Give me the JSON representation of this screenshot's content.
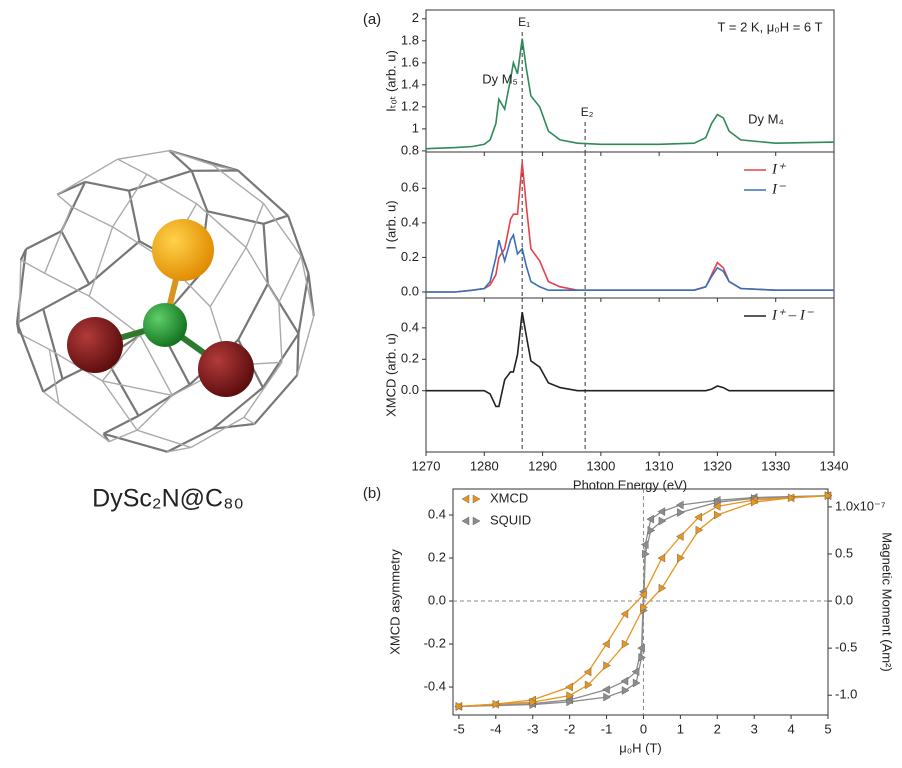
{
  "molecule": {
    "label": "DySc₂N@C₈₀"
  },
  "chart_data": [
    {
      "type": "line",
      "panel_label": "(a)",
      "ylabel": "Iₜₒₜ (arb. u)",
      "x": [
        1270,
        1275,
        1278,
        1280,
        1281,
        1282,
        1282.5,
        1283.5,
        1284.5,
        1285,
        1285.7,
        1286.5,
        1287.2,
        1288,
        1289.5,
        1291,
        1293,
        1296,
        1300,
        1310,
        1316,
        1318,
        1319,
        1320,
        1321,
        1322,
        1324,
        1330,
        1340
      ],
      "series": [
        {
          "color": "#2e8b57",
          "values": [
            0.82,
            0.83,
            0.84,
            0.86,
            0.9,
            1.05,
            1.27,
            1.18,
            1.45,
            1.6,
            1.5,
            1.82,
            1.55,
            1.3,
            1.2,
            0.98,
            0.9,
            0.87,
            0.86,
            0.86,
            0.87,
            0.92,
            1.05,
            1.13,
            1.1,
            0.98,
            0.9,
            0.87,
            0.88
          ]
        }
      ],
      "xlim": [
        1270,
        1340
      ],
      "ylim": [
        0.79,
        2.08
      ],
      "yticks": [
        0.8,
        1,
        1.2,
        1.4,
        1.6,
        1.8,
        2
      ],
      "annotations": [
        {
          "text": "T = 2 K, μ₀H = 6 T"
        },
        {
          "text": "Dy M₅"
        },
        {
          "text": "Dy M₄"
        }
      ],
      "vlines": [
        {
          "x": 1286.5,
          "label": "E₁"
        },
        {
          "x": 1297.3,
          "label": "E₂"
        }
      ]
    },
    {
      "type": "line",
      "ylabel": "I (arb. u)",
      "x": [
        1270,
        1275,
        1278,
        1280,
        1281,
        1282,
        1282.5,
        1283.5,
        1284.5,
        1285,
        1285.7,
        1286.5,
        1287.2,
        1288,
        1289.5,
        1291,
        1293,
        1296,
        1300,
        1310,
        1316,
        1318,
        1319,
        1320,
        1321,
        1322,
        1324,
        1330,
        1340
      ],
      "series": [
        {
          "name": "I⁺",
          "color": "#e8404a",
          "values": [
            0,
            0,
            0.01,
            0.02,
            0.04,
            0.1,
            0.2,
            0.25,
            0.42,
            0.45,
            0.45,
            0.75,
            0.5,
            0.25,
            0.18,
            0.06,
            0.03,
            0.01,
            0.01,
            0.01,
            0.01,
            0.03,
            0.1,
            0.17,
            0.14,
            0.06,
            0.02,
            0.01,
            0.01
          ]
        },
        {
          "name": "I⁻",
          "color": "#3a6fb8",
          "values": [
            0,
            0,
            0.01,
            0.02,
            0.06,
            0.2,
            0.3,
            0.18,
            0.3,
            0.33,
            0.22,
            0.25,
            0.15,
            0.06,
            0.03,
            0.01,
            0.01,
            0.01,
            0.01,
            0.01,
            0.01,
            0.03,
            0.09,
            0.14,
            0.12,
            0.06,
            0.02,
            0.01,
            0.01
          ]
        }
      ],
      "xlim": [
        1270,
        1340
      ],
      "ylim": [
        -0.035,
        0.81
      ],
      "yticks": [
        {
          "value": 0,
          "label": "0.0"
        },
        0.2,
        0.4,
        0.6
      ]
    },
    {
      "type": "line",
      "ylabel": "XMCD  (arb. u)",
      "xlabel": "Photon Energy (eV)",
      "x": [
        1270,
        1275,
        1278,
        1280,
        1281,
        1282,
        1282.5,
        1283.5,
        1284.5,
        1285,
        1285.7,
        1286.5,
        1287.2,
        1288,
        1289.5,
        1291,
        1293,
        1296,
        1300,
        1310,
        1316,
        1318,
        1319,
        1320,
        1321,
        1322,
        1324,
        1330,
        1340
      ],
      "series": [
        {
          "name": "I⁺ – I⁻",
          "color": "#222222",
          "values": [
            0,
            0,
            0,
            0,
            -0.02,
            -0.1,
            -0.1,
            0.07,
            0.12,
            0.12,
            0.23,
            0.5,
            0.35,
            0.19,
            0.15,
            0.05,
            0.02,
            0,
            0,
            0,
            0,
            0,
            0.01,
            0.03,
            0.02,
            0,
            0,
            0,
            0
          ]
        }
      ],
      "xlim": [
        1270,
        1340
      ],
      "ylim": [
        -0.39,
        0.59
      ],
      "xticks": [
        1270,
        1280,
        1290,
        1300,
        1310,
        1320,
        1330,
        1340
      ],
      "yticks": [
        {
          "value": 0,
          "label": "0.0"
        },
        0.2,
        0.4
      ]
    },
    {
      "type": "scatter",
      "panel_label": "(b)",
      "xlabel": "μ₀H (T)",
      "ylabel": "XMCD asymmetry",
      "y2label": "Magnetic Moment (Am²)",
      "xlim": [
        -5.16,
        5.0
      ],
      "ylim": [
        -0.53,
        0.521
      ],
      "y2lim": [
        -1.21e-07,
        1.19e-07
      ],
      "xticks": [
        -5,
        -4,
        -3,
        -2,
        -1,
        0,
        1,
        2,
        3,
        4,
        5
      ],
      "yticks": [
        -0.4,
        -0.2,
        {
          "value": 0,
          "label": "0.0"
        },
        0.2,
        0.4
      ],
      "y2ticks": [
        {
          "value": -1e-07,
          "label": "-1.0"
        },
        {
          "value": -5e-08,
          "label": "-0.5"
        },
        {
          "value": 0,
          "label": "0.0"
        },
        {
          "value": 5e-08,
          "label": "0.5"
        },
        {
          "value": 1e-07,
          "label": "1.0x10⁻⁷"
        }
      ],
      "series": [
        {
          "name": "XMCD",
          "color": "#e8951e",
          "branches": [
            {
              "x": [
                5,
                4,
                3,
                2,
                1.5,
                1,
                0.5,
                0,
                -0.5,
                -1,
                -1.5,
                -2,
                -3,
                -4,
                -5
              ],
              "values": [
                0.49,
                0.48,
                0.47,
                0.44,
                0.39,
                0.3,
                0.2,
                0.03,
                -0.06,
                -0.2,
                -0.33,
                -0.4,
                -0.46,
                -0.48,
                -0.49
              ]
            },
            {
              "x": [
                -5,
                -4,
                -3,
                -2,
                -1.5,
                -1,
                -0.5,
                0,
                0.5,
                1,
                1.5,
                2,
                3,
                4,
                5
              ],
              "values": [
                -0.49,
                -0.48,
                -0.47,
                -0.44,
                -0.39,
                -0.3,
                -0.2,
                -0.03,
                0.06,
                0.2,
                0.33,
                0.4,
                0.46,
                0.48,
                0.49
              ]
            }
          ]
        },
        {
          "name": "SQUID",
          "color": "#8c8c8c",
          "axis": "y2",
          "branches": [
            {
              "x": [
                5,
                3,
                2,
                1,
                0.5,
                0.2,
                0.05,
                0,
                -0.05,
                -0.2,
                -0.5,
                -1,
                -2,
                -3,
                -5
              ],
              "values": [
                1.12e-07,
                1.1e-07,
                1.07e-07,
                1.02e-07,
                9.5e-08,
                8.7e-08,
                6e-08,
                1e-08,
                -5e-08,
                -7.5e-08,
                -8.5e-08,
                -9.4e-08,
                -1.05e-07,
                -1.09e-07,
                -1.12e-07
              ]
            },
            {
              "x": [
                -5,
                -3,
                -2,
                -1,
                -0.5,
                -0.2,
                -0.05,
                0,
                0.05,
                0.2,
                0.5,
                1,
                2,
                3,
                5
              ],
              "values": [
                -1.12e-07,
                -1.1e-07,
                -1.07e-07,
                -1.02e-07,
                -9.5e-08,
                -8.7e-08,
                -6e-08,
                -1e-08,
                5e-08,
                7.5e-08,
                8.5e-08,
                9.4e-08,
                1.05e-07,
                1.09e-07,
                1.12e-07
              ]
            }
          ]
        }
      ]
    }
  ]
}
